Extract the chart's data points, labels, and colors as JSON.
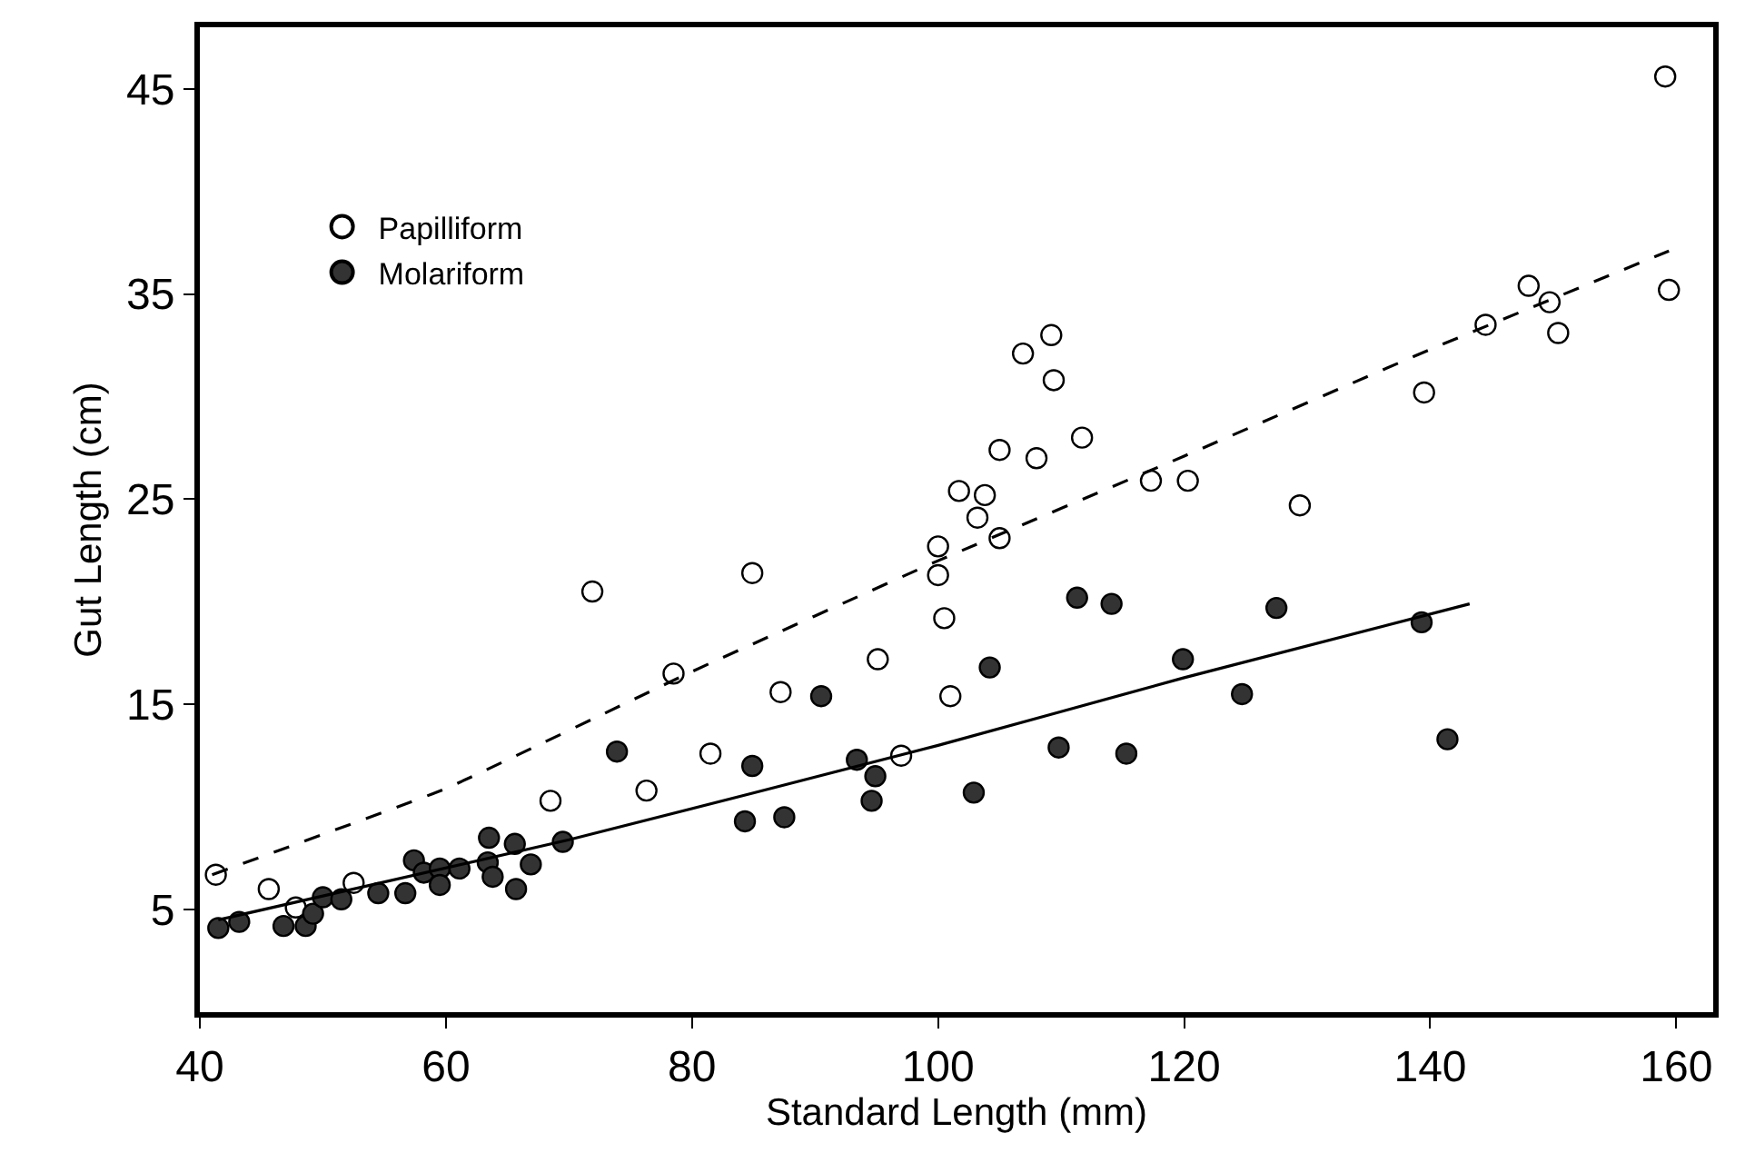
{
  "chart_data": {
    "type": "scatter",
    "xlabel": "Standard Length (mm)",
    "ylabel": "Gut Length (cm)",
    "xlim": [
      40,
      163
    ],
    "xticks": [
      40,
      60,
      80,
      100,
      120,
      140,
      160
    ],
    "ylim": [
      0,
      48
    ],
    "yticks": [
      5,
      15,
      25,
      35,
      45
    ],
    "legend": "top left",
    "marker": "circle",
    "series": [
      {
        "name": "Papilliform",
        "color": "#ffffff",
        "x": [
          41.3,
          45.6,
          47.8,
          52.5,
          68.5,
          71.9,
          76.3,
          78.5,
          81.5,
          84.9,
          87.2,
          95.1,
          97.0,
          100.0,
          100.0,
          100.5,
          101.0,
          101.7,
          103.2,
          103.8,
          105.0,
          105.0,
          106.9,
          108.0,
          109.2,
          109.4,
          111.7,
          117.3,
          120.3,
          129.4,
          139.5,
          144.5,
          148.0,
          149.7,
          150.4,
          159.1,
          159.4
        ],
        "values": [
          6.7,
          6.0,
          5.1,
          6.3,
          10.3,
          20.5,
          10.8,
          16.5,
          12.6,
          21.4,
          15.6,
          17.2,
          12.5,
          22.7,
          21.3,
          19.2,
          15.4,
          25.4,
          24.1,
          25.2,
          23.1,
          27.4,
          32.1,
          27.0,
          33.0,
          30.8,
          28.0,
          25.9,
          25.9,
          24.7,
          30.2,
          33.5,
          35.4,
          34.6,
          33.1,
          45.6,
          35.2
        ]
      },
      {
        "name": "Molariform",
        "color": "#333333",
        "x": [
          41.5,
          43.2,
          46.8,
          48.6,
          49.2,
          50.0,
          51.5,
          54.5,
          56.7,
          57.4,
          58.2,
          59.5,
          59.5,
          61.1,
          63.5,
          63.4,
          63.8,
          65.6,
          66.9,
          65.7,
          69.5,
          73.9,
          84.9,
          84.3,
          87.5,
          90.5,
          93.4,
          94.9,
          94.6,
          104.2,
          102.9,
          109.8,
          111.3,
          114.1,
          115.3,
          119.9,
          124.7,
          127.5,
          139.3,
          141.4
        ],
        "values": [
          4.1,
          4.4,
          4.2,
          4.2,
          4.8,
          5.6,
          5.5,
          5.8,
          5.8,
          7.4,
          6.8,
          7.0,
          6.2,
          7.0,
          8.5,
          7.3,
          6.6,
          8.2,
          7.2,
          6.0,
          8.3,
          12.7,
          12.0,
          9.3,
          9.5,
          15.4,
          12.3,
          11.5,
          10.3,
          16.8,
          10.7,
          12.9,
          20.2,
          19.9,
          12.6,
          17.2,
          15.5,
          19.7,
          19.0,
          13.3
        ]
      },
      {
        "type": "line",
        "line_style": "dashed",
        "marker": "none",
        "color": "#000000",
        "x": [
          41.0,
          60.0,
          80.0,
          100.0,
          120.0,
          140.0,
          159.4
        ],
        "values": [
          6.7,
          10.9,
          16.6,
          22.0,
          27.1,
          32.3,
          37.1
        ]
      },
      {
        "type": "line",
        "line_style": "solid",
        "marker": "none",
        "color": "#000000",
        "x": [
          41.5,
          70.0,
          100.0,
          120.0,
          143.2
        ],
        "values": [
          4.5,
          8.4,
          13.0,
          16.3,
          19.9
        ]
      }
    ]
  }
}
